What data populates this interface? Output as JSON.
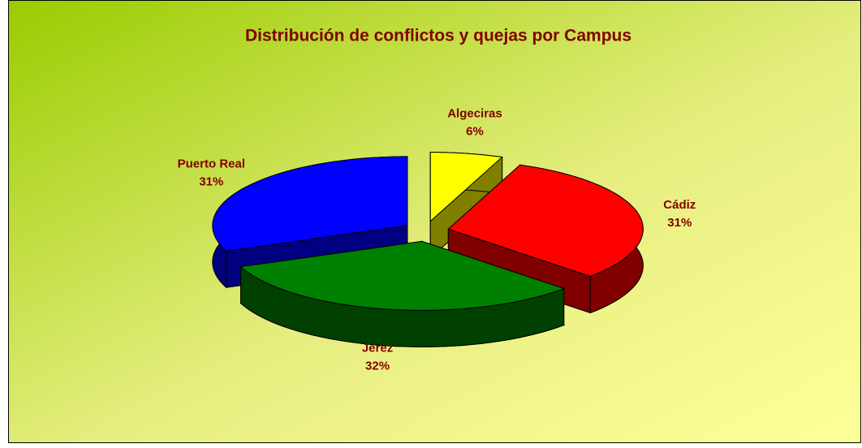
{
  "chart_data": {
    "type": "pie",
    "title": "Distribución de conflictos y quejas por Campus",
    "categories": [
      "Algeciras",
      "Cádiz",
      "Jerez",
      "Puerto Real"
    ],
    "values": [
      6,
      31,
      32,
      31
    ],
    "value_labels": [
      "6%",
      "31%",
      "32%",
      "31%"
    ],
    "colors": [
      "#ffff00",
      "#ff0000",
      "#008000",
      "#0000ff"
    ]
  }
}
